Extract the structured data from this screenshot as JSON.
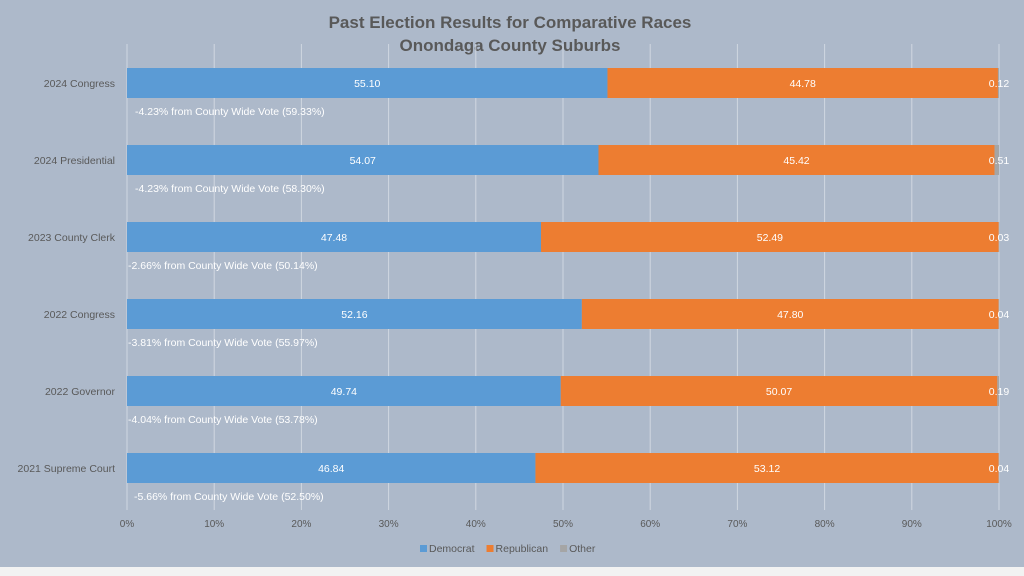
{
  "chart_data": {
    "type": "bar",
    "orientation": "horizontal",
    "stacked": "percent",
    "title": "Past Election Results for Comparative Races",
    "subtitle": "Onondaga County Suburbs",
    "xlabel": "",
    "ylabel": "",
    "xlim": [
      0,
      100
    ],
    "x_ticks": [
      "0%",
      "10%",
      "20%",
      "30%",
      "40%",
      "50%",
      "60%",
      "70%",
      "80%",
      "90%",
      "100%"
    ],
    "grid": "vertical",
    "legend_position": "bottom",
    "categories": [
      "2024 Congress",
      "2024 Presidential",
      "2023 County Clerk",
      "2022 Congress",
      "2022 Governor",
      "2021 Supreme Court"
    ],
    "series": [
      {
        "name": "Democrat",
        "color": "#5b9bd5",
        "values": [
          55.1,
          54.07,
          47.48,
          52.16,
          49.74,
          46.84
        ],
        "labels": [
          "55.10",
          "54.07",
          "47.48",
          "52.16",
          "49.74",
          "46.84"
        ]
      },
      {
        "name": "Republican",
        "color": "#ed7d31",
        "values": [
          44.78,
          45.42,
          52.49,
          47.8,
          50.07,
          53.12
        ],
        "labels": [
          "44.78",
          "45.42",
          "52.49",
          "47.80",
          "50.07",
          "53.12"
        ]
      },
      {
        "name": "Other",
        "color": "#a5a5a5",
        "values": [
          0.12,
          0.51,
          0.03,
          0.04,
          0.19,
          0.04
        ],
        "labels": [
          "0.12",
          "0.51",
          "0.03",
          "0.04",
          "0.19",
          "0.04"
        ]
      }
    ],
    "annotations": [
      "-4.23% from County Wide Vote (59.33%)",
      "-4.23% from County Wide Vote (58.30%)",
      "-2.66% from County Wide Vote (50.14%)",
      "-3.81% from County Wide Vote (55.97%)",
      "-4.04% from County Wide Vote (53.78%)",
      "-5.66% from County Wide Vote (52.50%)"
    ],
    "colors": {
      "background": "#adb9ca",
      "gridline": "#d0d7e1",
      "title_text": "#595959",
      "axis_text": "#595959",
      "label_text": "#ffffff"
    }
  }
}
